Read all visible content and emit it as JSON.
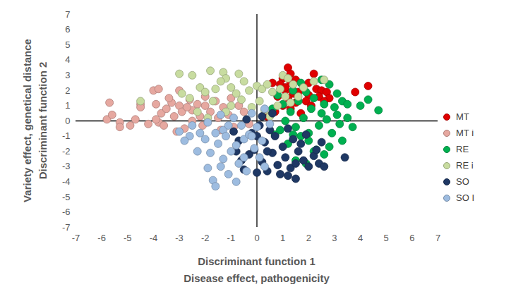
{
  "chart_data": {
    "type": "scatter",
    "x_label": "Discriminant function 1\nDisease effect, pathogenicity",
    "y_label": "Variety effect, genetical distance\nDiscriminant function 2",
    "xlim": [
      -7,
      7
    ],
    "ylim": [
      -7,
      7
    ],
    "xticks": [
      -7,
      -6,
      -5,
      -4,
      -3,
      -2,
      -1,
      0,
      1,
      2,
      3,
      4,
      5,
      6,
      7
    ],
    "yticks": [
      -7,
      -6,
      -5,
      -4,
      -3,
      -2,
      -1,
      0,
      1,
      2,
      3,
      4,
      5,
      6,
      7
    ],
    "grid": false,
    "legend": "right",
    "series": [
      {
        "name": "MT",
        "color": "#e00000",
        "values": [
          [
            1.2,
            3.5
          ],
          [
            1.3,
            3.1
          ],
          [
            2.2,
            3.1
          ],
          [
            1.0,
            2.8
          ],
          [
            1.5,
            2.7
          ],
          [
            0.9,
            2.4
          ],
          [
            1.3,
            2.5
          ],
          [
            1.8,
            2.3
          ],
          [
            2.3,
            2.1
          ],
          [
            2.5,
            2.0
          ],
          [
            2.7,
            1.9
          ],
          [
            1.1,
            2.0
          ],
          [
            1.4,
            1.8
          ],
          [
            1.6,
            1.9
          ],
          [
            2.0,
            1.7
          ],
          [
            0.8,
            1.6
          ],
          [
            1.2,
            1.5
          ],
          [
            2.4,
            1.6
          ],
          [
            2.8,
            1.5
          ],
          [
            1.5,
            1.2
          ],
          [
            1.9,
            1.3
          ],
          [
            2.1,
            1.0
          ],
          [
            1.0,
            1.0
          ],
          [
            0.7,
            0.6
          ],
          [
            1.3,
            0.8
          ],
          [
            0.4,
            0.3
          ],
          [
            1.7,
            0.5
          ],
          [
            3.8,
            1.9
          ],
          [
            4.3,
            2.3
          ],
          [
            1.1,
            2.2
          ],
          [
            0.6,
            2.5
          ],
          [
            2.6,
            1.3
          ],
          [
            2.0,
            2.5
          ]
        ]
      },
      {
        "name": "MT i",
        "color": "#e6a8a0",
        "values": [
          [
            -5.8,
            0.1
          ],
          [
            -5.7,
            1.2
          ],
          [
            -5.6,
            0.4
          ],
          [
            -5.3,
            -0.1
          ],
          [
            -5.3,
            -0.4
          ],
          [
            -4.9,
            -0.3
          ],
          [
            -4.5,
            1.1
          ],
          [
            -4.5,
            0.9
          ],
          [
            -4.0,
            2.0
          ],
          [
            -3.8,
            2.1
          ],
          [
            -3.9,
            1.1
          ],
          [
            -3.7,
            0.5
          ],
          [
            -3.8,
            -0.1
          ],
          [
            -3.6,
            -0.3
          ],
          [
            -3.5,
            0.8
          ],
          [
            -3.3,
            1.2
          ],
          [
            -3.2,
            0.3
          ],
          [
            -3.0,
            2.0
          ],
          [
            -3.0,
            1.0
          ],
          [
            -2.9,
            0.6
          ],
          [
            -3.1,
            -0.7
          ],
          [
            -2.8,
            -0.5
          ],
          [
            -2.6,
            1.4
          ],
          [
            -2.5,
            0.7
          ],
          [
            -2.5,
            0.0
          ],
          [
            -2.3,
            1.1
          ],
          [
            -2.2,
            0.3
          ],
          [
            -2.1,
            -0.3
          ],
          [
            -2.0,
            1.0
          ],
          [
            -1.8,
            0.6
          ],
          [
            -1.6,
            1.3
          ],
          [
            -1.5,
            0.2
          ],
          [
            -1.4,
            -0.6
          ],
          [
            -1.3,
            0.9
          ],
          [
            -1.1,
            0.4
          ],
          [
            -0.9,
            -0.4
          ],
          [
            -0.7,
            1.0
          ],
          [
            -0.5,
            0.6
          ],
          [
            -0.3,
            -0.2
          ],
          [
            -4.2,
            -0.2
          ],
          [
            -2.7,
            0.9
          ],
          [
            -3.4,
            1.5
          ],
          [
            -2.0,
            1.6
          ],
          [
            -1.0,
            1.5
          ],
          [
            -4.7,
            0.1
          ],
          [
            -3.9,
            0.1
          ]
        ]
      },
      {
        "name": "RE",
        "color": "#00b050",
        "values": [
          [
            4.7,
            0.7
          ],
          [
            4.3,
            1.4
          ],
          [
            3.7,
            -0.4
          ],
          [
            3.5,
            0.2
          ],
          [
            3.3,
            1.3
          ],
          [
            3.2,
            -0.2
          ],
          [
            3.0,
            0.9
          ],
          [
            3.1,
            1.8
          ],
          [
            2.8,
            2.4
          ],
          [
            2.6,
            1.1
          ],
          [
            2.5,
            0.5
          ],
          [
            2.4,
            -0.3
          ],
          [
            2.2,
            1.5
          ],
          [
            2.1,
            0.8
          ],
          [
            2.0,
            -0.8
          ],
          [
            1.9,
            1.9
          ],
          [
            1.8,
            0.2
          ],
          [
            1.7,
            -1.0
          ],
          [
            1.6,
            1.3
          ],
          [
            1.5,
            -0.4
          ],
          [
            1.4,
            2.0
          ],
          [
            1.3,
            0.6
          ],
          [
            1.2,
            -1.5
          ],
          [
            1.1,
            0.0
          ],
          [
            1.0,
            1.1
          ],
          [
            0.9,
            -0.6
          ],
          [
            2.3,
            -1.9
          ],
          [
            2.6,
            -2.2
          ],
          [
            2.8,
            -1.7
          ],
          [
            3.3,
            -1.3
          ],
          [
            2.9,
            -0.8
          ],
          [
            2.0,
            -1.3
          ],
          [
            1.5,
            -2.6
          ],
          [
            1.9,
            -2.8
          ],
          [
            2.2,
            -2.0
          ],
          [
            0.6,
            0.8
          ],
          [
            0.8,
            1.7
          ],
          [
            1.7,
            2.5
          ],
          [
            2.5,
            2.7
          ],
          [
            3.5,
            1.1
          ],
          [
            4.0,
            1.0
          ],
          [
            2.7,
            0.1
          ],
          [
            3.1,
            0.4
          ],
          [
            1.4,
            -0.9
          ],
          [
            0.7,
            -0.9
          ]
        ]
      },
      {
        "name": "RE i",
        "color": "#c8dca0",
        "values": [
          [
            -3.0,
            3.1
          ],
          [
            -2.5,
            3.0
          ],
          [
            -1.8,
            3.3
          ],
          [
            -1.3,
            3.2
          ],
          [
            -1.2,
            2.8
          ],
          [
            -0.7,
            3.1
          ],
          [
            -0.5,
            2.6
          ],
          [
            -2.2,
            2.2
          ],
          [
            -2.0,
            1.9
          ],
          [
            -1.6,
            2.1
          ],
          [
            -1.4,
            2.6
          ],
          [
            -1.0,
            2.2
          ],
          [
            -0.8,
            1.8
          ],
          [
            -0.3,
            2.0
          ],
          [
            0.0,
            2.3
          ],
          [
            0.2,
            2.1
          ],
          [
            0.4,
            2.4
          ],
          [
            0.6,
            1.9
          ],
          [
            0.9,
            2.1
          ],
          [
            1.0,
            3.0
          ],
          [
            1.2,
            2.8
          ],
          [
            1.4,
            2.4
          ],
          [
            1.6,
            1.6
          ],
          [
            1.8,
            2.2
          ],
          [
            2.2,
            2.6
          ],
          [
            2.6,
            2.7
          ],
          [
            1.3,
            1.2
          ],
          [
            0.8,
            1.0
          ],
          [
            0.1,
            1.3
          ],
          [
            -0.2,
            0.9
          ],
          [
            -1.7,
            1.3
          ],
          [
            -2.6,
            1.5
          ],
          [
            -2.9,
            1.8
          ],
          [
            -2.3,
            0.6
          ],
          [
            -1.2,
            0.6
          ],
          [
            -4.5,
            1.3
          ],
          [
            -1.9,
            0.2
          ],
          [
            0.5,
            0.3
          ],
          [
            -0.6,
            1.4
          ],
          [
            1.1,
            1.6
          ],
          [
            0.3,
            0.7
          ],
          [
            -1.0,
            1.0
          ]
        ]
      },
      {
        "name": "SO",
        "color": "#1f3864",
        "values": [
          [
            -0.9,
            -0.7
          ],
          [
            -0.7,
            -1.3
          ],
          [
            -0.6,
            -2.6
          ],
          [
            -0.5,
            -3.2
          ],
          [
            -0.3,
            -2.2
          ],
          [
            -0.2,
            -0.8
          ],
          [
            -0.1,
            -1.9
          ],
          [
            0.0,
            -3.4
          ],
          [
            0.1,
            -0.3
          ],
          [
            0.2,
            -2.7
          ],
          [
            0.3,
            -1.4
          ],
          [
            0.4,
            -3.3
          ],
          [
            0.5,
            -0.6
          ],
          [
            0.6,
            -2.1
          ],
          [
            0.7,
            -1.0
          ],
          [
            0.8,
            -2.9
          ],
          [
            0.9,
            -3.5
          ],
          [
            1.0,
            -1.7
          ],
          [
            1.1,
            -2.4
          ],
          [
            1.2,
            -0.5
          ],
          [
            1.3,
            -3.1
          ],
          [
            1.4,
            -1.2
          ],
          [
            1.5,
            -3.8
          ],
          [
            1.6,
            -2.0
          ],
          [
            1.7,
            -1.5
          ],
          [
            1.8,
            -2.6
          ],
          [
            2.0,
            -3.0
          ],
          [
            2.2,
            -2.3
          ],
          [
            2.4,
            -2.8
          ],
          [
            2.5,
            -1.4
          ],
          [
            2.6,
            -3.0
          ],
          [
            3.4,
            -2.4
          ],
          [
            0.2,
            0.3
          ],
          [
            0.6,
            0.5
          ],
          [
            -0.4,
            0.1
          ],
          [
            1.9,
            -0.9
          ],
          [
            1.2,
            -3.6
          ],
          [
            0.0,
            -1.0
          ],
          [
            0.4,
            -2.0
          ],
          [
            1.5,
            -2.8
          ],
          [
            -0.8,
            -2.0
          ],
          [
            2.3,
            -1.9
          ]
        ]
      },
      {
        "name": "SO I",
        "color": "#9dbce0",
        "values": [
          [
            -3.0,
            -0.7
          ],
          [
            -2.6,
            -1.0
          ],
          [
            -2.3,
            -2.0
          ],
          [
            -2.2,
            -0.8
          ],
          [
            -2.0,
            -1.2
          ],
          [
            -1.9,
            -0.1
          ],
          [
            -1.8,
            -2.1
          ],
          [
            -1.7,
            -3.9
          ],
          [
            -1.6,
            -4.3
          ],
          [
            -1.5,
            -1.5
          ],
          [
            -1.4,
            -3.0
          ],
          [
            -1.3,
            -2.5
          ],
          [
            -1.3,
            -0.6
          ],
          [
            -1.2,
            -1.0
          ],
          [
            -1.1,
            -3.5
          ],
          [
            -1.0,
            -2.0
          ],
          [
            -0.9,
            0.2
          ],
          [
            -0.8,
            -1.6
          ],
          [
            -0.7,
            -2.8
          ],
          [
            -0.6,
            -0.3
          ],
          [
            -0.5,
            -1.2
          ],
          [
            -0.4,
            -3.3
          ],
          [
            -0.3,
            -0.9
          ],
          [
            -0.2,
            0.5
          ],
          [
            -0.1,
            -1.8
          ],
          [
            0.0,
            -0.4
          ],
          [
            0.1,
            -2.4
          ],
          [
            0.2,
            -1.3
          ],
          [
            0.3,
            0.8
          ],
          [
            0.5,
            -0.2
          ],
          [
            -1.6,
            -0.8
          ],
          [
            -2.5,
            -0.3
          ],
          [
            -1.1,
            -0.3
          ],
          [
            -0.5,
            -2.4
          ],
          [
            -1.9,
            -3.1
          ],
          [
            -0.8,
            -4.0
          ],
          [
            0.3,
            -3.0
          ],
          [
            -1.4,
            0.4
          ],
          [
            -0.2,
            -1.0
          ],
          [
            -2.8,
            -1.3
          ]
        ]
      }
    ]
  }
}
